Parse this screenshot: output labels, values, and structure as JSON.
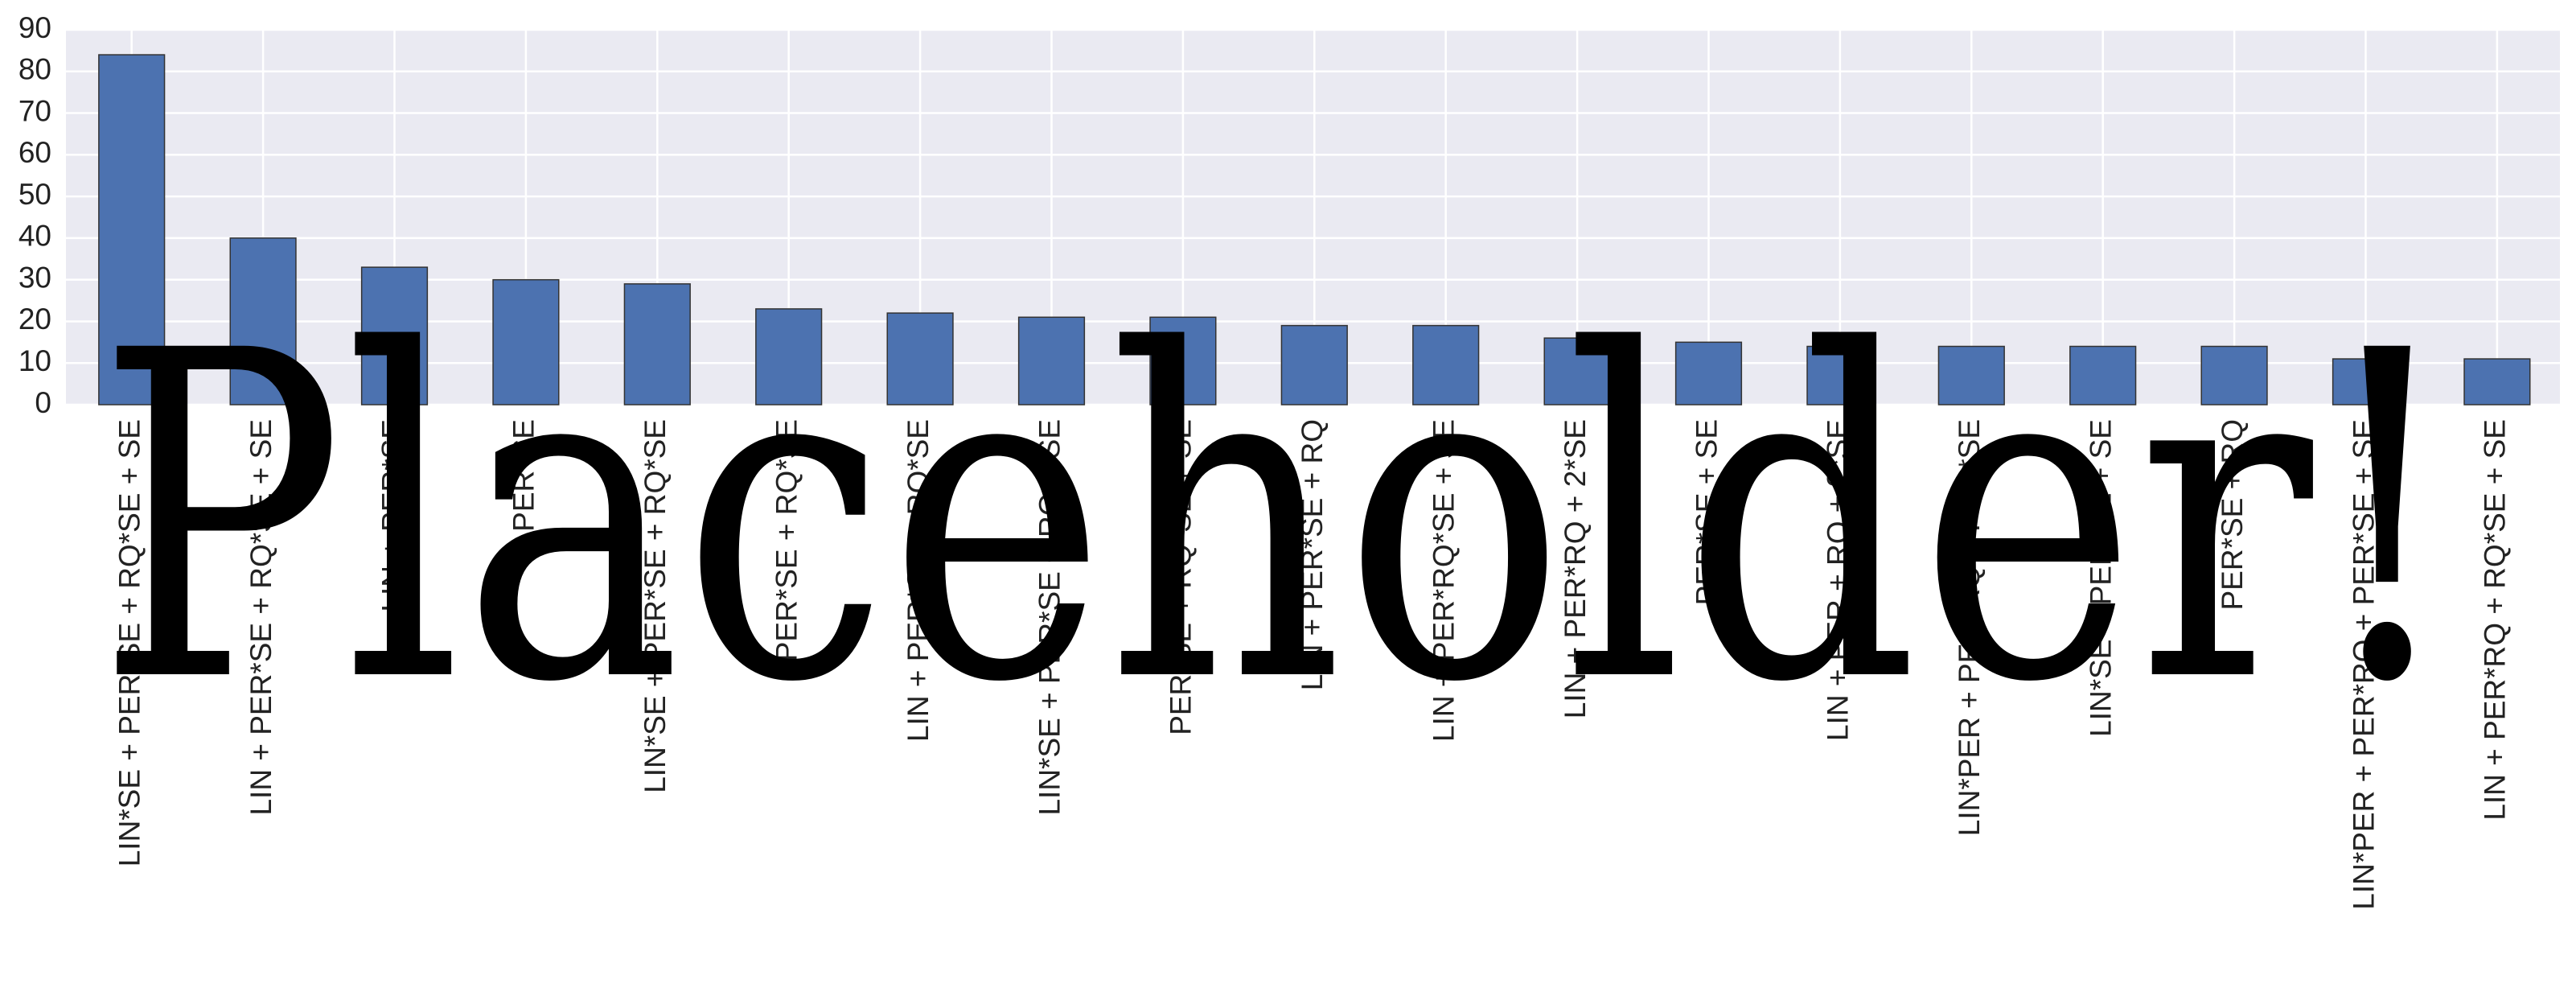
{
  "chart_data": {
    "type": "bar",
    "categories": [
      "LIN*SE + PER*SE + RQ*SE + SE",
      "LIN + PER*SE + RQ*SE + SE",
      "LIN + PER*SE",
      "PER*SE",
      "LIN*SE + PER*SE + RQ*SE",
      "PER*SE + RQ*SE",
      "LIN + PER*SE + RQ*SE",
      "LIN*SE + PER*SE + RQ + SE",
      "PER*SE + RQ*SE + SE",
      "LIN + PER*SE + RQ",
      "LIN + PER*RQ*SE + SE",
      "LIN + PER*RQ + 2*SE",
      "PER*SE + SE",
      "LIN + PER + RQ + 2*SE",
      "LIN*PER + PER*RQ + PER*SE",
      "LIN*SE + PER*SE + SE",
      "PER*SE + RQ",
      "LIN*PER + PER*RQ + PER*SE + SE",
      "LIN + PER*RQ + RQ*SE + SE"
    ],
    "values": [
      84,
      40,
      33,
      30,
      29,
      23,
      22,
      21,
      21,
      19,
      19,
      16,
      15,
      14,
      14,
      14,
      14,
      11,
      11
    ],
    "color": "#4c72b0",
    "ylim": [
      0,
      90
    ],
    "yticks": [
      0,
      10,
      20,
      30,
      40,
      50,
      60,
      70,
      80,
      90
    ],
    "grid": true,
    "annotation": "Placeholder!"
  }
}
